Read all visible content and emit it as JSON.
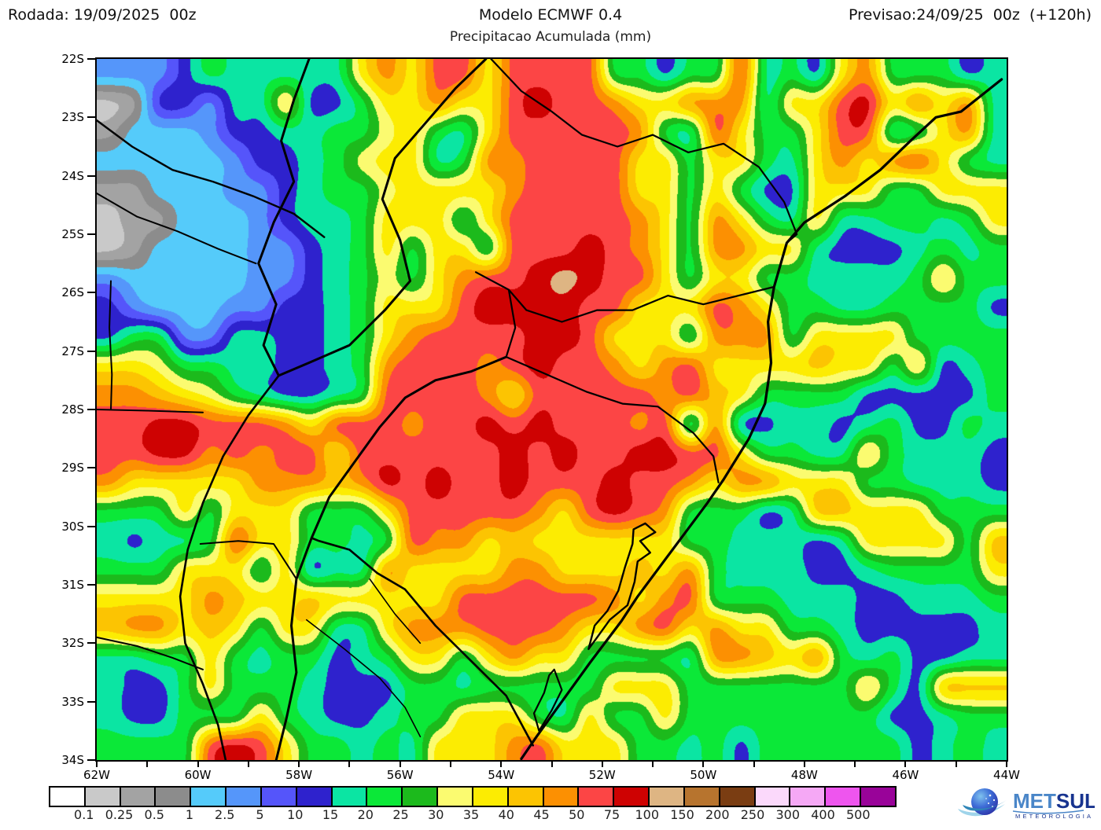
{
  "header": {
    "run_label": "Rodada: 19/09/2025  00z",
    "model_title": "Modelo ECMWF 0.4",
    "product_subtitle": "Precipitacao Acumulada (mm)",
    "forecast_label": "Previsao:24/09/25  00z  (+120h)"
  },
  "axes": {
    "y_tick_labels": [
      "22S",
      "23S",
      "24S",
      "25S",
      "26S",
      "27S",
      "28S",
      "29S",
      "30S",
      "31S",
      "32S",
      "33S",
      "34S"
    ],
    "x_tick_labels": [
      "62W",
      "60W",
      "58W",
      "56W",
      "54W",
      "52W",
      "50W",
      "48W",
      "46W",
      "44W"
    ]
  },
  "legend": {
    "thresholds": [
      "0.1",
      "0.25",
      "0.5",
      "1",
      "2.5",
      "5",
      "10",
      "15",
      "20",
      "25",
      "30",
      "35",
      "40",
      "45",
      "50",
      "75",
      "100",
      "150",
      "200",
      "250",
      "300",
      "400",
      "500"
    ]
  },
  "logo": {
    "name_primary": "MET",
    "name_secondary": "SUL",
    "tagline": "METEOROLOGIA"
  },
  "chart_data": {
    "type": "heatmap",
    "title": "Modelo ECMWF 0.4 - Precipitacao Acumulada (mm)",
    "units": "mm",
    "lon_range_deg_west": [
      62,
      44
    ],
    "lat_range_deg_south": [
      22,
      34
    ],
    "grid_cols": 36,
    "grid_rows_count": 24,
    "cell_deg": 0.5,
    "legend_position": "bottom",
    "thresholds_mm": [
      0.1,
      0.25,
      0.5,
      1,
      2.5,
      5,
      10,
      15,
      20,
      25,
      30,
      35,
      40,
      45,
      50,
      75,
      100,
      150,
      200,
      250,
      300,
      400,
      500
    ],
    "palette_keys": "abcdefghijklmnopqrstuvwx",
    "palette_colors": [
      "#FFFFFF",
      "#C9C9C9",
      "#A3A3A3",
      "#8C8C8C",
      "#55CBFA",
      "#5596FA",
      "#5555FA",
      "#2E22CD",
      "#0BE5A3",
      "#0BE838",
      "#1CBA1C",
      "#FBFB70",
      "#FCEC02",
      "#FCC402",
      "#FC9002",
      "#FC4545",
      "#CE0202",
      "#DEB583",
      "#B7742E",
      "#7A3D12",
      "#FBD9FB",
      "#F5A8F5",
      "#EE55EE",
      "#990399"
    ],
    "grid": [
      "fffhjiiiiimomppmppppjjhjjpijhmojjjhi",
      "bchhfiimhhjmmommpqppommoooimmpqmomoi",
      "ceeefhhiijjlmjimpppppojipmjjmppijmoi",
      "eeeeefhhijlmmijooppppmmjmmjimomopmji",
      "cceeeffhijjlmmmmoppppmmjmjhhmmmjjmmm",
      "bcceeefhiijmmmjmpppppomjomjimiijjijm",
      "bceeeeffhijmjmmjpppqpomjoommihhhijij",
      "feeeeeffhijljmoppqrqppmjmmjjiiiijmjj",
      "hfeeeffhhijmmmpqqqqppmmmpomjjiijjjjh",
      "hjjffiihhijmoppppqqpmmmjooojmmmmjjjj",
      "mmljjiihhijopppopqppomopmmmmnmmjmhij",
      "oonmljihhijppppompppppopnmjjjjhhhhhj",
      "ppqqpppompppoppqpqpppopiohhiihijhhji",
      "ppqqopoppmppppppqpqppqqppmjjiimjiiih",
      "ommmmmooonoqpqppqpppqppomoommmjjiiih",
      "jjjmjmmmjjjmpppppompqpojjjhinnmmmjjj",
      "ihiijpmmjjijpoomnmmmmmmjjiiihimmmmjn",
      "jjjmmmjmhiiommmmoommmnmojiiihhijjjjm",
      "mmmmonmmnmmmmmppppppomopjjjiiihhiiij",
      "noomnmjmmiimooopppommopmommjjihhhhhi",
      "iijjmjijjhijmmjmommjjjjioonmojijhhii",
      "ihhjmjjjihhhjjijjjjjmmmjjjjjjjmjhnnn",
      "ihhjjjmjihhijjmmmjimjjmjjjjjjjjhhijj",
      "jjjjpqpmjjijimmmopmmmjjijhjjjjjjhiji"
    ]
  }
}
